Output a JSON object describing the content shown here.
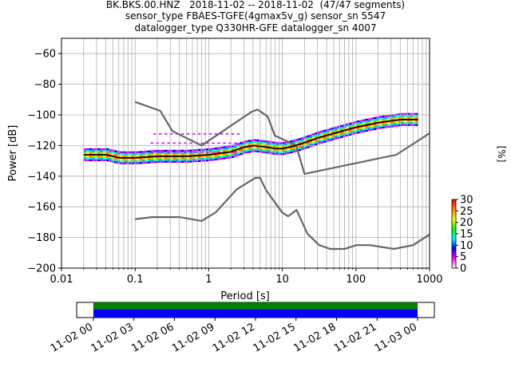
{
  "title_lines": [
    "BK.BKS.00.HNZ   2018-11-02 -- 2018-11-02  (47/47 segments)",
    "sensor_type FBAES-TGFE(4gmax5v_g) sensor_sn 5547",
    "datalogger_type Q330HR-GFE datalogger_sn 4007"
  ],
  "chart_data": {
    "type": "heatmap",
    "subtype": "probabilistic power spectral density",
    "xlabel": "Period [s]",
    "ylabel": "Power [dB]",
    "xscale": "log",
    "xlim": [
      0.01,
      1000
    ],
    "ylim": [
      -200,
      -50
    ],
    "x_ticks": [
      "0.01",
      "0.1",
      "1",
      "10",
      "100",
      "1000"
    ],
    "y_ticks": [
      "−60",
      "−80",
      "−100",
      "−120",
      "−140",
      "−160",
      "−180",
      "−200"
    ],
    "grid": true,
    "noise_model_curves": [
      {
        "x": [
          0.1,
          0.22,
          0.32,
          0.8,
          3.8,
          4.6,
          6.3,
          7.9,
          15.4,
          20,
          354.8,
          1000
        ],
        "y": [
          -91.5,
          -97.4,
          -110.5,
          -120,
          -98,
          -96.5,
          -101,
          -113.5,
          -120,
          -138.5,
          -126,
          -112
        ]
      },
      {
        "x": [
          0.1,
          0.17,
          0.4,
          0.8,
          1.24,
          2.4,
          4.3,
          5,
          6,
          10,
          12,
          15.6,
          21.9,
          31.6,
          45,
          70,
          101,
          154,
          328,
          600,
          1000
        ],
        "y": [
          -168,
          -166.7,
          -166.7,
          -169.2,
          -163.7,
          -148.6,
          -141.1,
          -141.1,
          -149,
          -163.8,
          -166.2,
          -162.1,
          -177.5,
          -185,
          -187.5,
          -187.5,
          -185,
          -185,
          -187.5,
          -185,
          -178
        ]
      }
    ],
    "mean_curve": {
      "x": [
        0.02,
        0.03,
        0.04,
        0.06,
        0.1,
        0.2,
        0.5,
        1,
        2,
        3,
        4,
        6,
        8,
        10,
        15,
        20,
        30,
        50,
        100,
        200,
        400,
        700
      ],
      "y": [
        -126,
        -126,
        -126,
        -128,
        -128,
        -127,
        -127,
        -126,
        -124,
        -121,
        -120,
        -121,
        -122,
        -122,
        -120,
        -118,
        -115,
        -112,
        -108,
        -105,
        -103,
        -103
      ]
    },
    "colorbar": {
      "label": "[%]",
      "ticks": [
        "0",
        "5",
        "10",
        "15",
        "20",
        "25",
        "30"
      ],
      "range": [
        0,
        30
      ]
    }
  },
  "timeline": {
    "ticks": [
      "11-02 00",
      "11-02 03",
      "11-02 06",
      "11-02 09",
      "11-02 12",
      "11-02 15",
      "11-02 18",
      "11-02 21",
      "11-03 00"
    ],
    "bar_colors": [
      "#008000",
      "#0000ff"
    ],
    "coverage": [
      [
        0,
        1
      ]
    ]
  }
}
